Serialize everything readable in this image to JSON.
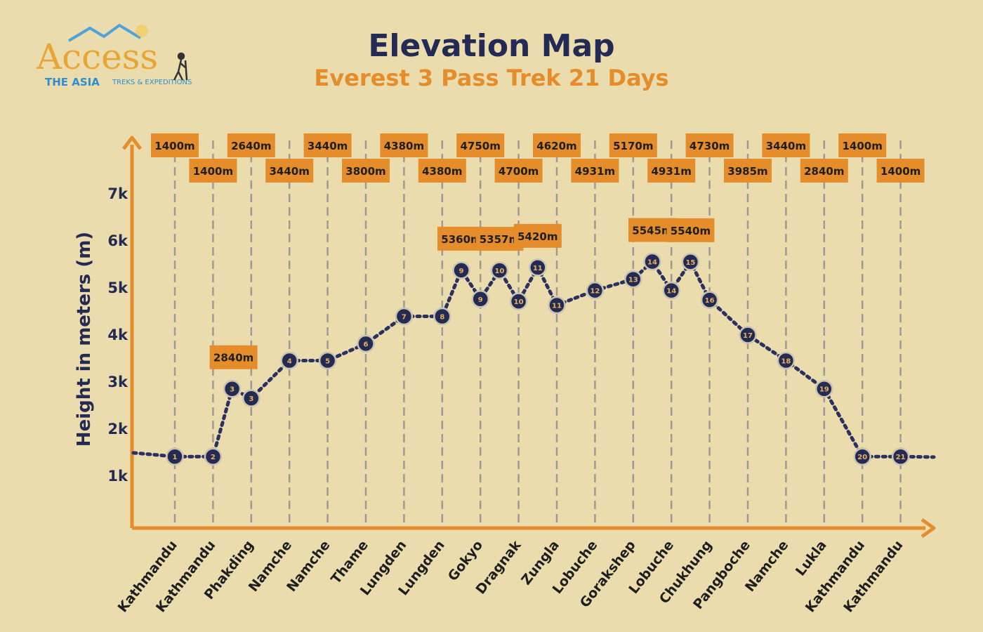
{
  "logo": {
    "brand": "Access",
    "line1": "THE ASIA",
    "line2": "TREKS & EXPEDITIONS"
  },
  "colors": {
    "background": "#ebdcae",
    "navy": "#232b54",
    "orange": "#e58d2b",
    "label_bg": "#e58d2b"
  },
  "chart_data": {
    "type": "line",
    "title": "Elevation Map",
    "subtitle": "Everest 3 Pass Trek 21 Days",
    "ylabel": "Height in meters (m)",
    "xlabel": "",
    "yticks": [
      "1k",
      "2k",
      "3k",
      "4k",
      "5k",
      "6k",
      "7k"
    ],
    "ylim": [
      0,
      7800
    ],
    "x": [
      "Kathmandu",
      "Kathmandu",
      "Phakding",
      "Namche",
      "Namche",
      "Thame",
      "Lungden",
      "Lungden",
      "Gokyo",
      "Dragnak",
      "Zungla",
      "Lobuche",
      "Gorakshep",
      "Lobuche",
      "Chukhung",
      "Pangboche",
      "Namche",
      "Lukla",
      "Kathmandu",
      "Kathmandu"
    ],
    "header_labels": [
      "1400m",
      "1400m",
      "2640m",
      "3440m",
      "3440m",
      "3800m",
      "4380m",
      "4380m",
      "4750m",
      "4700m",
      "4620m",
      "4931m",
      "5170m",
      "4931m",
      "4730m",
      "3985m",
      "3440m",
      "2840m",
      "1400m",
      "1400m"
    ],
    "series": [
      {
        "points": [
          {
            "x": 0,
            "y": 1400,
            "label": "1"
          },
          {
            "x": 1,
            "y": 1400,
            "label": "2"
          },
          {
            "x": 1.5,
            "y": 2840,
            "label": "3"
          },
          {
            "x": 2,
            "y": 2640,
            "label": "3"
          },
          {
            "x": 3,
            "y": 3440,
            "label": "4"
          },
          {
            "x": 4,
            "y": 3440,
            "label": "5"
          },
          {
            "x": 5,
            "y": 3800,
            "label": "6"
          },
          {
            "x": 6,
            "y": 4380,
            "label": "7"
          },
          {
            "x": 7,
            "y": 4380,
            "label": "8"
          },
          {
            "x": 7.5,
            "y": 5360,
            "label": "9"
          },
          {
            "x": 8,
            "y": 4750,
            "label": "9"
          },
          {
            "x": 8.5,
            "y": 5357,
            "label": "10"
          },
          {
            "x": 9,
            "y": 4700,
            "label": "10"
          },
          {
            "x": 9.5,
            "y": 5420,
            "label": "11"
          },
          {
            "x": 10,
            "y": 4620,
            "label": "11"
          },
          {
            "x": 11,
            "y": 4931,
            "label": "12"
          },
          {
            "x": 12,
            "y": 5170,
            "label": "13"
          },
          {
            "x": 12.5,
            "y": 5545,
            "label": "14"
          },
          {
            "x": 13,
            "y": 4931,
            "label": "14"
          },
          {
            "x": 13.5,
            "y": 5540,
            "label": "15"
          },
          {
            "x": 14,
            "y": 4730,
            "label": "16"
          },
          {
            "x": 15,
            "y": 3985,
            "label": "17"
          },
          {
            "x": 16,
            "y": 3440,
            "label": "18"
          },
          {
            "x": 17,
            "y": 2840,
            "label": "19"
          },
          {
            "x": 18,
            "y": 1400,
            "label": "20"
          },
          {
            "x": 19,
            "y": 1400,
            "label": "21"
          }
        ]
      }
    ],
    "peak_labels": [
      {
        "at_point": 2,
        "text": "2840m"
      },
      {
        "at_point": 9,
        "text": "5360m"
      },
      {
        "at_point": 11,
        "text": "5357m"
      },
      {
        "at_point": 13,
        "text": "5420m"
      },
      {
        "at_point": 17,
        "text": "5545m"
      },
      {
        "at_point": 19,
        "text": "5540m"
      }
    ]
  }
}
